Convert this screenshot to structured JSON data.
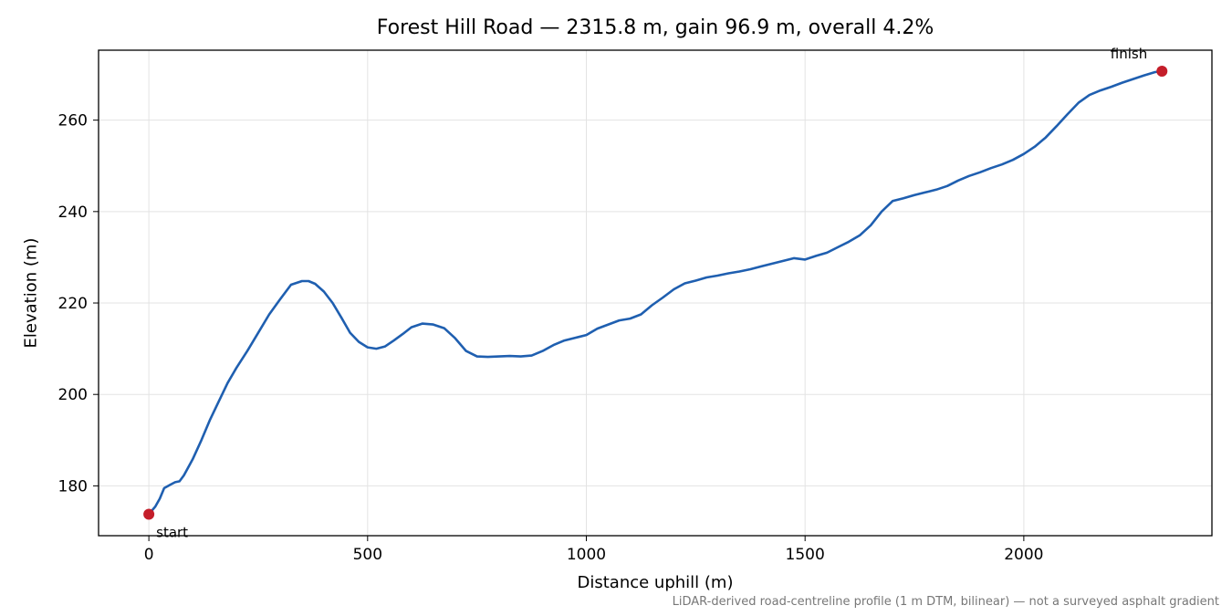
{
  "chart_data": {
    "type": "line",
    "title": "Forest Hill Road — 2315.8 m, gain 96.9 m, overall 4.2%",
    "xlabel": "Distance uphill (m)",
    "ylabel": "Elevation (m)",
    "xlim": [
      -115,
      2430
    ],
    "ylim": [
      169.1,
      275.3
    ],
    "xticks": [
      0,
      500,
      1000,
      1500,
      2000
    ],
    "yticks": [
      180,
      200,
      220,
      240,
      260
    ],
    "grid": true,
    "line_color": "#1f5fb0",
    "marker_color": "#c41e2a",
    "series": [
      {
        "x": [
          0,
          15,
          25,
          35,
          50,
          60,
          70,
          80,
          100,
          120,
          140,
          160,
          180,
          200,
          225,
          250,
          275,
          300,
          325,
          350,
          365,
          380,
          400,
          420,
          440,
          460,
          480,
          500,
          520,
          540,
          560,
          580,
          600,
          625,
          650,
          675,
          700,
          725,
          750,
          775,
          800,
          825,
          850,
          875,
          900,
          925,
          950,
          975,
          1000,
          1025,
          1050,
          1075,
          1100,
          1125,
          1150,
          1175,
          1200,
          1225,
          1250,
          1275,
          1300,
          1325,
          1350,
          1375,
          1400,
          1425,
          1450,
          1475,
          1500,
          1525,
          1550,
          1575,
          1600,
          1625,
          1650,
          1675,
          1700,
          1725,
          1750,
          1775,
          1800,
          1825,
          1850,
          1875,
          1900,
          1925,
          1950,
          1975,
          2000,
          2025,
          2050,
          2075,
          2100,
          2125,
          2150,
          2175,
          2200,
          2225,
          2250,
          2275,
          2300,
          2315.8
        ],
        "y": [
          173.8,
          175.5,
          177.2,
          179.5,
          180.3,
          180.8,
          181.0,
          182.3,
          185.8,
          190.0,
          194.5,
          198.5,
          202.5,
          205.8,
          209.5,
          213.5,
          217.5,
          220.8,
          224.0,
          224.8,
          224.8,
          224.2,
          222.5,
          220.0,
          216.8,
          213.5,
          211.5,
          210.3,
          210.0,
          210.5,
          211.8,
          213.2,
          214.7,
          215.5,
          215.3,
          214.5,
          212.3,
          209.5,
          208.3,
          208.2,
          208.3,
          208.4,
          208.3,
          208.5,
          209.5,
          210.8,
          211.8,
          212.4,
          213.0,
          214.4,
          215.3,
          216.2,
          216.6,
          217.5,
          219.5,
          221.2,
          223.0,
          224.3,
          224.9,
          225.6,
          226.0,
          226.5,
          226.9,
          227.4,
          228.0,
          228.6,
          229.2,
          229.8,
          229.5,
          230.3,
          231.0,
          232.2,
          233.4,
          234.8,
          237.0,
          240.0,
          242.3,
          242.9,
          243.6,
          244.2,
          244.8,
          245.6,
          246.8,
          247.8,
          248.6,
          249.5,
          250.3,
          251.3,
          252.6,
          254.2,
          256.2,
          258.7,
          261.3,
          263.8,
          265.5,
          266.5,
          267.3,
          268.2,
          269.0,
          269.8,
          270.5,
          270.7
        ]
      }
    ],
    "annotations": [
      {
        "label": "start",
        "x": 0,
        "y": 173.8
      },
      {
        "label": "finish",
        "x": 2315.8,
        "y": 270.7
      }
    ],
    "note": "LiDAR-derived road-centreline profile (1 m DTM, bilinear) — not a surveyed asphalt gradient"
  }
}
